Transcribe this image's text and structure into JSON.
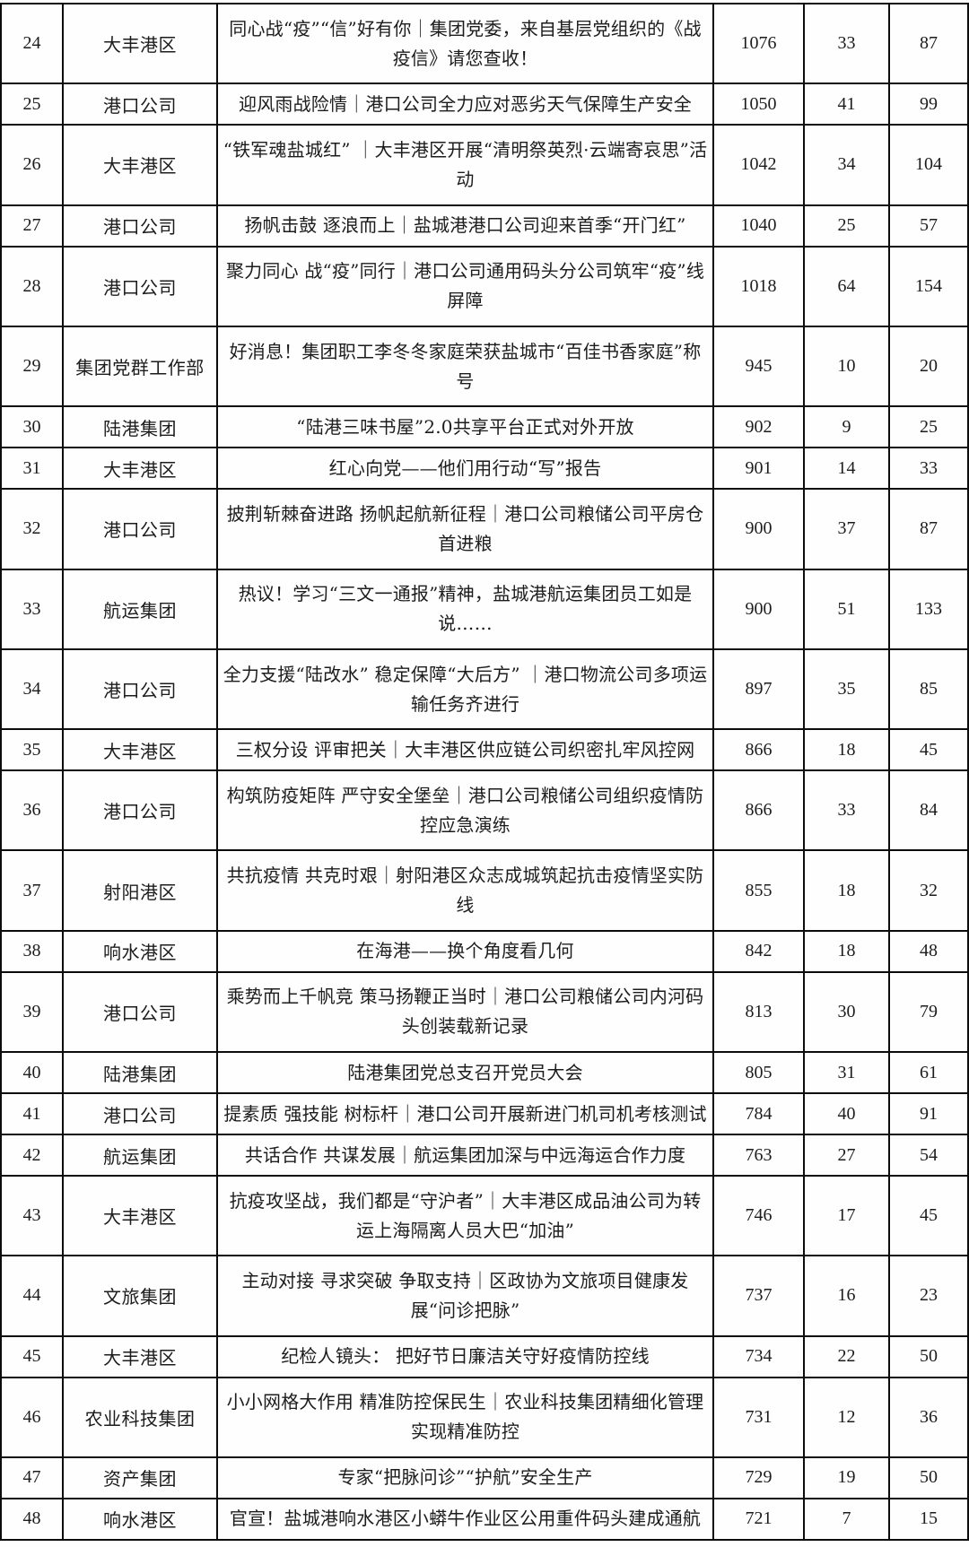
{
  "document": {
    "type": "wechat-article-statistics-table",
    "rows_visible": "24-48"
  },
  "table": {
    "rows": [
      [
        "24",
        "大丰港区",
        "同心战“疫”“信”好有你｜集团党委，来自基层党组织的《战疫信》请您查收！",
        "1076",
        "33",
        "87"
      ],
      [
        "25",
        "港口公司",
        "迎风雨战险情｜港口公司全力应对恶劣天气保障生产安全",
        "1050",
        "41",
        "99"
      ],
      [
        "26",
        "大丰港区",
        "“铁军魂盐城红” ｜大丰港区开展“清明祭英烈·云端寄哀思”活动",
        "1042",
        "34",
        "104"
      ],
      [
        "27",
        "港口公司",
        "扬帆击鼓 逐浪而上｜盐城港港口公司迎来首季“开门红”",
        "1040",
        "25",
        "57"
      ],
      [
        "28",
        "港口公司",
        "聚力同心 战“疫”同行｜港口公司通用码头分公司筑牢“疫”线屏障",
        "1018",
        "64",
        "154"
      ],
      [
        "29",
        "集团党群工作部",
        "好消息！集团职工李冬冬家庭荣获盐城市“百佳书香家庭”称号",
        "945",
        "10",
        "20"
      ],
      [
        "30",
        "陆港集团",
        "“陆港三味书屋”2.0共享平台正式对外开放",
        "902",
        "9",
        "25"
      ],
      [
        "31",
        "大丰港区",
        "红心向党——他们用行动“写”报告",
        "901",
        "14",
        "33"
      ],
      [
        "32",
        "港口公司",
        "披荆斩棘奋进路 扬帆起航新征程｜港口公司粮储公司平房仓首进粮",
        "900",
        "37",
        "87"
      ],
      [
        "33",
        "航运集团",
        "热议！学习“三文一通报”精神，盐城港航运集团员工如是说……",
        "900",
        "51",
        "133"
      ],
      [
        "34",
        "港口公司",
        "全力支援“陆改水” 稳定保障“大后方” ｜港口物流公司多项运输任务齐进行",
        "897",
        "35",
        "85"
      ],
      [
        "35",
        "大丰港区",
        "三权分设 评审把关｜大丰港区供应链公司织密扎牢风控网",
        "866",
        "18",
        "45"
      ],
      [
        "36",
        "港口公司",
        "构筑防疫矩阵 严守安全堡垒｜港口公司粮储公司组织疫情防控应急演练",
        "866",
        "33",
        "84"
      ],
      [
        "37",
        "射阳港区",
        "共抗疫情 共克时艰｜射阳港区众志成城筑起抗击疫情坚实防线",
        "855",
        "18",
        "32"
      ],
      [
        "38",
        "响水港区",
        "在海港——换个角度看几何",
        "842",
        "18",
        "48"
      ],
      [
        "39",
        "港口公司",
        "乘势而上千帆竞 策马扬鞭正当时｜港口公司粮储公司内河码头创装载新记录",
        "813",
        "30",
        "79"
      ],
      [
        "40",
        "陆港集团",
        "陆港集团党总支召开党员大会",
        "805",
        "31",
        "61"
      ],
      [
        "41",
        "港口公司",
        "提素质 强技能 树标杆｜港口公司开展新进门机司机考核测试",
        "784",
        "40",
        "91"
      ],
      [
        "42",
        "航运集团",
        "共话合作 共谋发展｜航运集团加深与中远海运合作力度",
        "763",
        "27",
        "54"
      ],
      [
        "43",
        "大丰港区",
        "抗疫攻坚战，我们都是“守沪者”｜大丰港区成品油公司为转运上海隔离人员大巴“加油”",
        "746",
        "17",
        "45"
      ],
      [
        "44",
        "文旅集团",
        "主动对接 寻求突破 争取支持｜区政协为文旅项目健康发展“问诊把脉”",
        "737",
        "16",
        "23"
      ],
      [
        "45",
        "大丰港区",
        "纪检人镜头： 把好节日廉洁关守好疫情防控线",
        "734",
        "22",
        "50"
      ],
      [
        "46",
        "农业科技集团",
        "小小网格大作用 精准防控保民生｜农业科技集团精细化管理实现精准防控",
        "731",
        "12",
        "36"
      ],
      [
        "47",
        "资产集团",
        "专家“把脉问诊”“护航”安全生产",
        "729",
        "19",
        "50"
      ],
      [
        "48",
        "响水港区",
        "官宣！盐城港响水港区小蟒牛作业区公用重件码头建成通航",
        "721",
        "7",
        "15"
      ]
    ]
  }
}
